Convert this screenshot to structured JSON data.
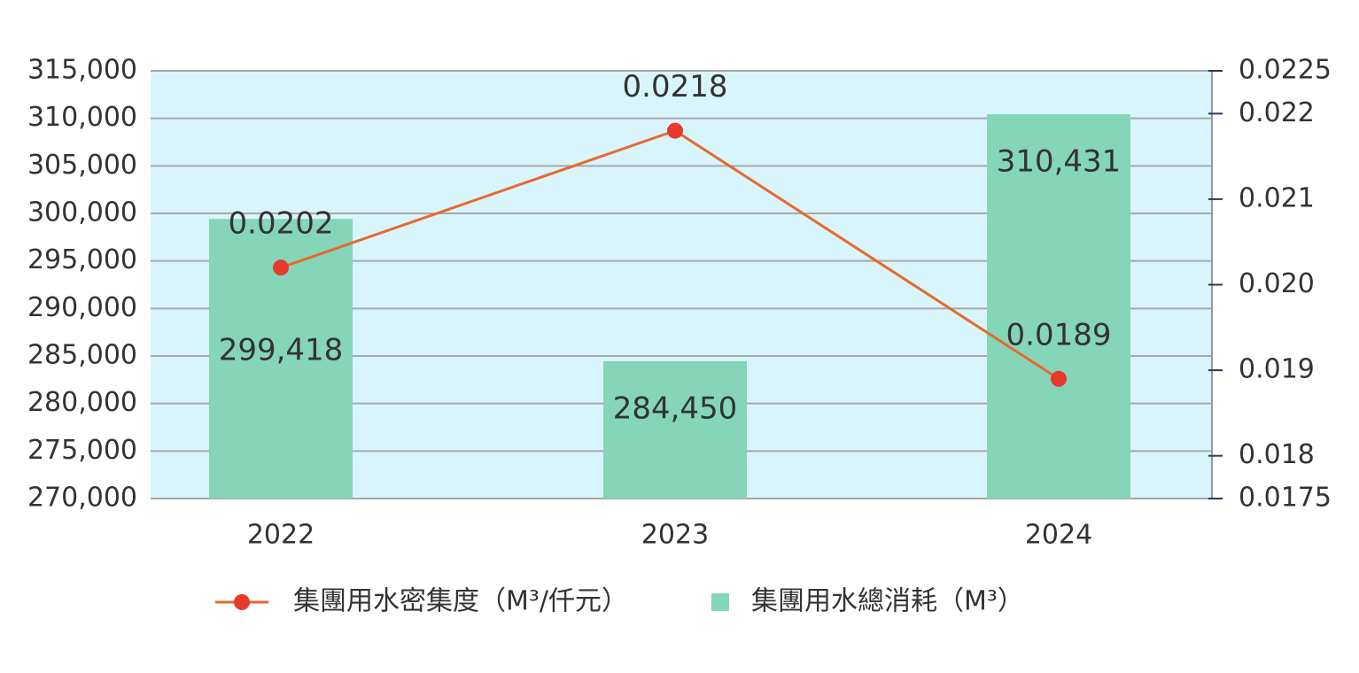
{
  "chart_data": {
    "type": "bar_line",
    "categories": [
      "2022",
      "2023",
      "2024"
    ],
    "series": [
      {
        "name": "集團用水密集度（M³/仟元）",
        "type": "line",
        "axis": "y2",
        "color": "#e8692d",
        "marker_color": "#e8392d",
        "label_color": "#e03a30",
        "values": [
          0.0202,
          0.0218,
          0.0189
        ]
      },
      {
        "name": "集團用水總消耗（M³）",
        "type": "bar",
        "color": "#85d5b8",
        "label_color": "#2a7a55",
        "values": [
          299418,
          284450,
          310431
        ],
        "value_labels": [
          "299,418",
          "284,450",
          "310,431"
        ]
      }
    ],
    "ylim": [
      270000,
      315000
    ],
    "yticks": [
      {
        "value": 270000,
        "label": "270,000"
      },
      {
        "value": 275000,
        "label": "275,000"
      },
      {
        "value": 280000,
        "label": "280,000"
      },
      {
        "value": 285000,
        "label": "285,000"
      },
      {
        "value": 290000,
        "label": "290,000"
      },
      {
        "value": 295000,
        "label": "295,000"
      },
      {
        "value": 300000,
        "label": "300,000"
      },
      {
        "value": 305000,
        "label": "305,000"
      },
      {
        "value": 310000,
        "label": "310,000"
      },
      {
        "value": 315000,
        "label": "315,000"
      }
    ],
    "y2lim": [
      0.0175,
      0.0225
    ],
    "y2ticks": [
      0.0175,
      0.018,
      0.019,
      {
        "value": 0.02,
        "label": "0.020"
      },
      0.021,
      0.022,
      0.0225
    ],
    "grid": true,
    "plot_background": "#d8f5fb",
    "legend": "bottom"
  }
}
